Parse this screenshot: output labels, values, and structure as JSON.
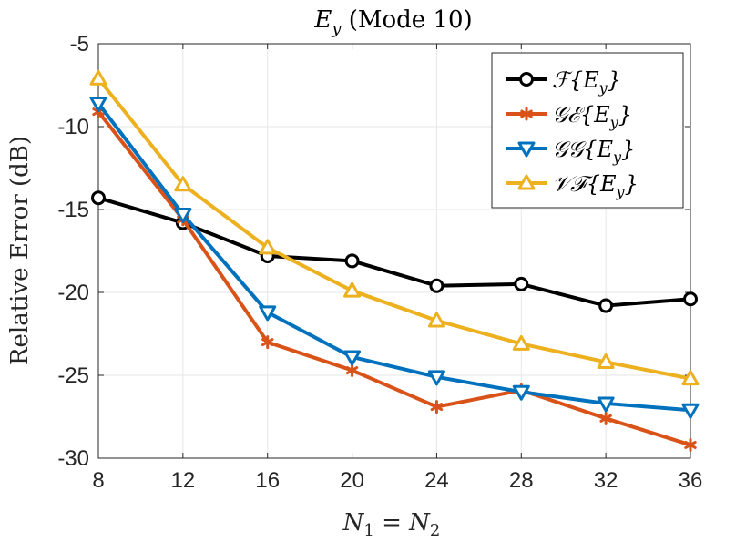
{
  "chart_data": {
    "type": "line",
    "title": "E_y (Mode 10)",
    "title_parts": {
      "main": "E",
      "sub": "y",
      "rest": " (Mode 10)"
    },
    "xlabel": "N_1 = N_2",
    "xlabel_parts": {
      "a": "N",
      "a_sub": "1",
      "eq": " = ",
      "b": "N",
      "b_sub": "2"
    },
    "ylabel": "Relative Error (dB)",
    "x": [
      8,
      12,
      16,
      20,
      24,
      28,
      32,
      36
    ],
    "xlim": [
      8,
      36
    ],
    "ylim": [
      -30,
      -5
    ],
    "xticks": [
      "8",
      "12",
      "16",
      "20",
      "24",
      "28",
      "32",
      "36"
    ],
    "yticks": [
      "-5",
      "-10",
      "-15",
      "-20",
      "-25",
      "-30"
    ],
    "ytick_values": [
      -5,
      -10,
      -15,
      -20,
      -25,
      -30
    ],
    "grid": true,
    "legend_position": "top-right",
    "series": [
      {
        "name": "F{E_y}",
        "legend_parts": {
          "op": "ℱ",
          "v": "E",
          "sub": "y"
        },
        "color": "#000000",
        "marker": "circle",
        "values": [
          -14.3,
          -15.8,
          -17.8,
          -18.1,
          -19.6,
          -19.5,
          -20.8,
          -20.4
        ]
      },
      {
        "name": "GE{E_y}",
        "legend_parts": {
          "op": "𝒢ℰ",
          "v": "E",
          "sub": "y"
        },
        "color": "#D95319",
        "marker": "asterisk",
        "values": [
          -9.1,
          -15.6,
          -23.0,
          -24.7,
          -26.9,
          -25.9,
          -27.6,
          -29.2
        ]
      },
      {
        "name": "GG{E_y}",
        "legend_parts": {
          "op": "𝒢𝒢",
          "v": "E",
          "sub": "y"
        },
        "color": "#0072BD",
        "marker": "triangle-down",
        "values": [
          -8.6,
          -15.3,
          -21.2,
          -23.9,
          -25.1,
          -26.0,
          -26.7,
          -27.1
        ]
      },
      {
        "name": "VF{E_y}",
        "legend_parts": {
          "op": "𝒱ℱ",
          "v": "E",
          "sub": "y"
        },
        "color": "#EDB120",
        "marker": "triangle-up",
        "values": [
          -7.1,
          -13.5,
          -17.3,
          -19.9,
          -21.7,
          -23.1,
          -24.2,
          -25.2
        ]
      }
    ]
  }
}
